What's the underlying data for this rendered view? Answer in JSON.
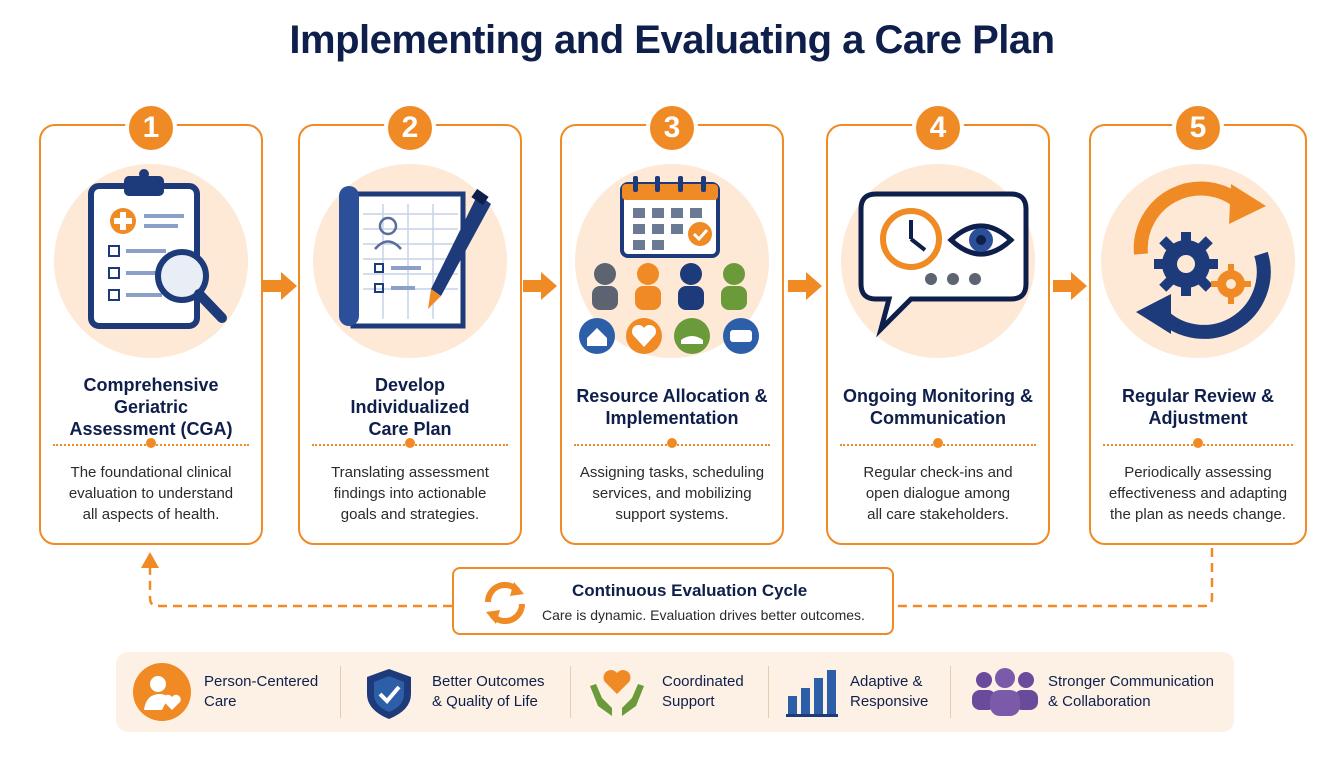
{
  "title": "Implementing and Evaluating a Care Plan",
  "steps": [
    {
      "number": "1",
      "title": "Comprehensive\nGeriatric\nAssessment (CGA)",
      "desc": "The foundational clinical\nevaluation to understand\nall aspects of health.",
      "icon": "clipboard-magnifier-icon"
    },
    {
      "number": "2",
      "title": "Develop\nIndividualized\nCare Plan",
      "desc": "Translating assessment\nfindings into actionable\ngoals and strategies.",
      "icon": "plan-document-pen-icon"
    },
    {
      "number": "3",
      "title": "Resource Allocation &\nImplementation",
      "desc": "Assigning tasks, scheduling\nservices, and mobilizing\nsupport systems.",
      "icon": "calendar-team-icon"
    },
    {
      "number": "4",
      "title": "Ongoing Monitoring &\nCommunication",
      "desc": "Regular check-ins and\nopen dialogue among\nall care stakeholders.",
      "icon": "speech-clock-eye-icon"
    },
    {
      "number": "5",
      "title": "Regular Review &\nAdjustment",
      "desc": "Periodically assessing\neffectiveness and adapting\nthe plan as needs change.",
      "icon": "gears-cycle-icon"
    }
  ],
  "cycle": {
    "title": "Continuous Evaluation Cycle",
    "subtitle": "Care is dynamic. Evaluation drives better outcomes."
  },
  "benefits": [
    {
      "label": "Person-Centered\nCare",
      "icon": "person-heart-icon"
    },
    {
      "label": "Better Outcomes\n& Quality of Life",
      "icon": "shield-check-icon"
    },
    {
      "label": "Coordinated\nSupport",
      "icon": "hands-heart-icon"
    },
    {
      "label": "Adaptive &\nResponsive",
      "icon": "bar-chart-icon"
    },
    {
      "label": "Stronger Communication\n& Collaboration",
      "icon": "group-people-icon"
    }
  ],
  "colors": {
    "orange": "#f08a24",
    "navy": "#1d3a7a",
    "peach": "#fde9d6",
    "green": "#6b9a3a",
    "gray": "#5b6470",
    "purple": "#6a4a9a"
  }
}
